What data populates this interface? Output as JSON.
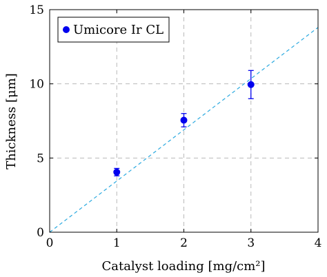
{
  "chart_data": {
    "type": "scatter",
    "xlabel": "Catalyst loading [mg/cm²]",
    "ylabel": "Thickness [μm]",
    "xlim": [
      0,
      4
    ],
    "ylim": [
      0,
      15
    ],
    "xticks": [
      "0",
      "1",
      "2",
      "3",
      "4"
    ],
    "yticks": [
      "0",
      "5",
      "10",
      "15"
    ],
    "grid": true,
    "legend_position": "top-left",
    "series": [
      {
        "name": "Umicore Ir CL",
        "color": "#0000ee",
        "marker": "circle",
        "points": [
          {
            "x": 1.0,
            "y": 4.05,
            "err": 0.25
          },
          {
            "x": 2.0,
            "y": 7.55,
            "err": 0.45
          },
          {
            "x": 3.0,
            "y": 9.95,
            "err": 0.95
          }
        ]
      }
    ],
    "fit_line": {
      "color": "#2aa9e0",
      "style": "dashed",
      "slope": 3.45,
      "intercept": 0
    }
  }
}
